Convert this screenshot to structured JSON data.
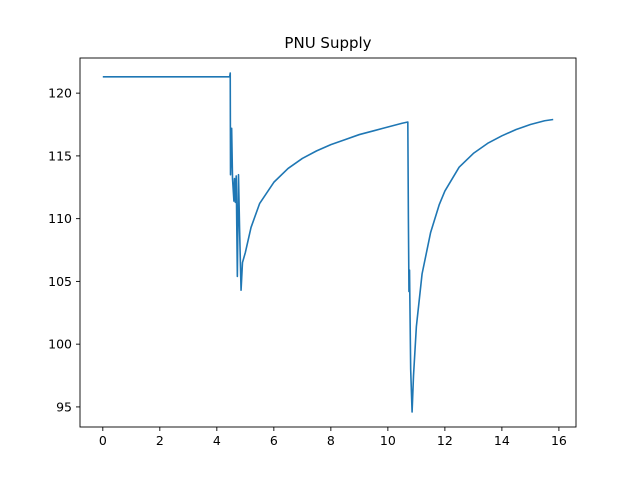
{
  "chart_data": {
    "type": "line",
    "title": "PNU Supply",
    "xlabel": "",
    "ylabel": "",
    "xlim": [
      -0.8,
      16.6
    ],
    "ylim": [
      93.4,
      122.8
    ],
    "xticks": [
      0,
      2,
      4,
      6,
      8,
      10,
      12,
      14,
      16
    ],
    "yticks": [
      95,
      100,
      105,
      110,
      115,
      120
    ],
    "grid": false,
    "series": [
      {
        "color": "#1f77b4",
        "points": [
          [
            0.0,
            121.3
          ],
          [
            1.0,
            121.3
          ],
          [
            2.0,
            121.3
          ],
          [
            3.0,
            121.3
          ],
          [
            4.0,
            121.3
          ],
          [
            4.45,
            121.3
          ],
          [
            4.47,
            121.6
          ],
          [
            4.48,
            113.5
          ],
          [
            4.52,
            117.2
          ],
          [
            4.55,
            113.2
          ],
          [
            4.6,
            111.4
          ],
          [
            4.62,
            113.2
          ],
          [
            4.65,
            111.3
          ],
          [
            4.68,
            113.4
          ],
          [
            4.72,
            105.4
          ],
          [
            4.76,
            113.5
          ],
          [
            4.8,
            109.0
          ],
          [
            4.85,
            104.3
          ],
          [
            4.9,
            106.5
          ],
          [
            5.0,
            107.3
          ],
          [
            5.2,
            109.3
          ],
          [
            5.5,
            111.2
          ],
          [
            6.0,
            112.9
          ],
          [
            6.5,
            114.0
          ],
          [
            7.0,
            114.8
          ],
          [
            7.5,
            115.4
          ],
          [
            8.0,
            115.9
          ],
          [
            8.5,
            116.3
          ],
          [
            9.0,
            116.7
          ],
          [
            9.5,
            117.0
          ],
          [
            10.0,
            117.3
          ],
          [
            10.5,
            117.6
          ],
          [
            10.7,
            117.7
          ],
          [
            10.72,
            110.0
          ],
          [
            10.74,
            104.2
          ],
          [
            10.76,
            105.9
          ],
          [
            10.8,
            98.0
          ],
          [
            10.85,
            94.6
          ],
          [
            10.9,
            97.5
          ],
          [
            11.0,
            101.4
          ],
          [
            11.2,
            105.6
          ],
          [
            11.5,
            108.9
          ],
          [
            11.8,
            111.1
          ],
          [
            12.0,
            112.2
          ],
          [
            12.5,
            114.1
          ],
          [
            13.0,
            115.2
          ],
          [
            13.5,
            116.0
          ],
          [
            14.0,
            116.6
          ],
          [
            14.5,
            117.1
          ],
          [
            15.0,
            117.5
          ],
          [
            15.5,
            117.8
          ],
          [
            15.8,
            117.9
          ]
        ]
      }
    ]
  }
}
